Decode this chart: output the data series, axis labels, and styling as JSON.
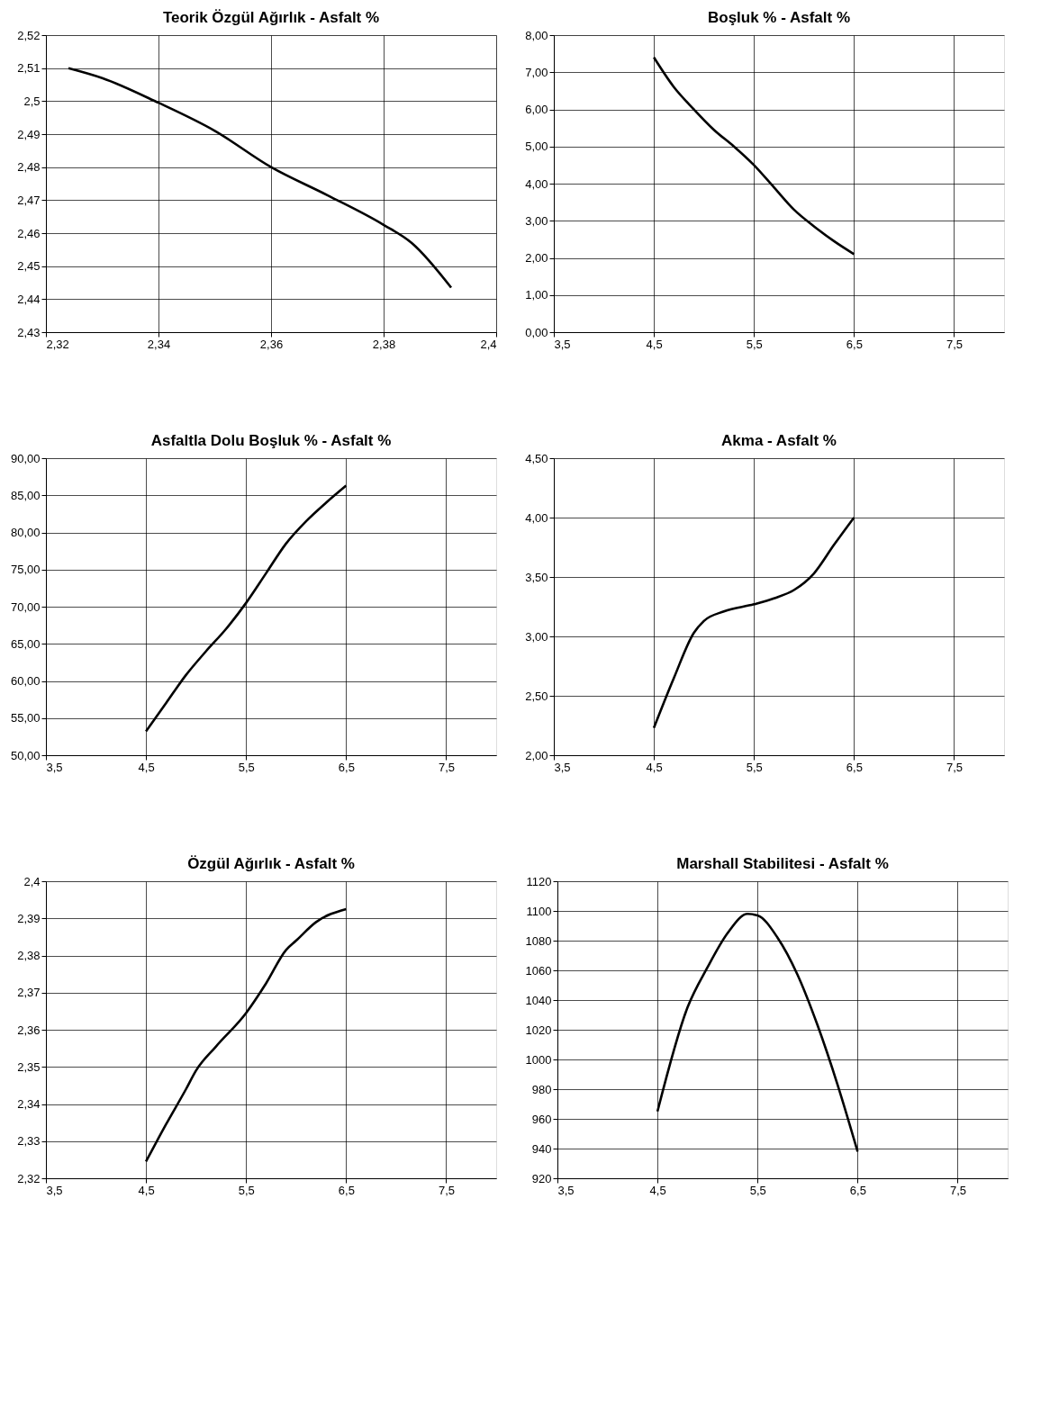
{
  "chart_data": [
    {
      "type": "line",
      "title": "Teorik Özgül Ağırlık - Asfalt %",
      "x": [
        2.324,
        2.33,
        2.34,
        2.35,
        2.36,
        2.37,
        2.38,
        2.385,
        2.392
      ],
      "series": [
        {
          "color": "#000000",
          "values": [
            2.51,
            2.507,
            2.4995,
            2.491,
            2.48,
            2.4715,
            2.4625,
            2.457,
            2.4435
          ]
        }
      ],
      "xlim": [
        2.32,
        2.4
      ],
      "xticks": [
        {
          "value": 2.32,
          "label": "2,32"
        },
        {
          "value": 2.34,
          "label": "2,34"
        },
        {
          "value": 2.36,
          "label": "2,36"
        },
        {
          "value": 2.38,
          "label": "2,38"
        },
        {
          "value": 2.4,
          "label": "2,4"
        }
      ],
      "ylim": [
        2.43,
        2.52
      ],
      "yticks": [
        {
          "value": 2.43,
          "label": "2,43"
        },
        {
          "value": 2.44,
          "label": "2,44"
        },
        {
          "value": 2.45,
          "label": "2,45"
        },
        {
          "value": 2.46,
          "label": "2,46"
        },
        {
          "value": 2.47,
          "label": "2,47"
        },
        {
          "value": 2.48,
          "label": "2,48"
        },
        {
          "value": 2.49,
          "label": "2,49"
        },
        {
          "value": 2.5,
          "label": "2,5"
        },
        {
          "value": 2.51,
          "label": "2,51"
        },
        {
          "value": 2.52,
          "label": "2,52"
        }
      ],
      "grid": true
    },
    {
      "type": "line",
      "title": "Boşluk % - Asfalt %",
      "x": [
        4.5,
        4.7,
        4.9,
        5.1,
        5.3,
        5.5,
        5.7,
        5.9,
        6.1,
        6.3,
        6.5
      ],
      "series": [
        {
          "color": "#000000",
          "values": [
            7.4,
            6.6,
            6.0,
            5.45,
            5.0,
            4.5,
            3.9,
            3.3,
            2.85,
            2.45,
            2.1
          ]
        }
      ],
      "xlim": [
        3.5,
        8.0
      ],
      "xticks": [
        {
          "value": 3.5,
          "label": "3,5"
        },
        {
          "value": 4.5,
          "label": "4,5"
        },
        {
          "value": 5.5,
          "label": "5,5"
        },
        {
          "value": 6.5,
          "label": "6,5"
        },
        {
          "value": 7.5,
          "label": "7,5"
        }
      ],
      "ylim": [
        0,
        8
      ],
      "yticks": [
        {
          "value": 0,
          "label": "0,00"
        },
        {
          "value": 1,
          "label": "1,00"
        },
        {
          "value": 2,
          "label": "2,00"
        },
        {
          "value": 3,
          "label": "3,00"
        },
        {
          "value": 4,
          "label": "4,00"
        },
        {
          "value": 5,
          "label": "5,00"
        },
        {
          "value": 6,
          "label": "6,00"
        },
        {
          "value": 7,
          "label": "7,00"
        },
        {
          "value": 8,
          "label": "8,00"
        }
      ],
      "grid": true
    },
    {
      "type": "line",
      "title": "Asfaltla Dolu Boşluk % - Asfalt %",
      "x": [
        4.5,
        4.7,
        4.9,
        5.1,
        5.3,
        5.5,
        5.7,
        5.9,
        6.1,
        6.3,
        6.5
      ],
      "series": [
        {
          "color": "#000000",
          "values": [
            53.2,
            57,
            60.8,
            64,
            67,
            70.5,
            74.5,
            78.5,
            81.5,
            84,
            86.3
          ]
        }
      ],
      "xlim": [
        3.5,
        8.0
      ],
      "xticks": [
        {
          "value": 3.5,
          "label": "3,5"
        },
        {
          "value": 4.5,
          "label": "4,5"
        },
        {
          "value": 5.5,
          "label": "5,5"
        },
        {
          "value": 6.5,
          "label": "6,5"
        },
        {
          "value": 7.5,
          "label": "7,5"
        }
      ],
      "ylim": [
        50,
        90
      ],
      "yticks": [
        {
          "value": 50,
          "label": "50,00"
        },
        {
          "value": 55,
          "label": "55,00"
        },
        {
          "value": 60,
          "label": "60,00"
        },
        {
          "value": 65,
          "label": "65,00"
        },
        {
          "value": 70,
          "label": "70,00"
        },
        {
          "value": 75,
          "label": "75,00"
        },
        {
          "value": 80,
          "label": "80,00"
        },
        {
          "value": 85,
          "label": "85,00"
        },
        {
          "value": 90,
          "label": "90,00"
        }
      ],
      "grid": true
    },
    {
      "type": "line",
      "title": "Akma - Asfalt %",
      "x": [
        4.5,
        4.7,
        4.9,
        5.0,
        5.2,
        5.5,
        5.7,
        5.9,
        6.1,
        6.3,
        6.5
      ],
      "series": [
        {
          "color": "#000000",
          "values": [
            2.23,
            2.65,
            3.03,
            3.13,
            3.21,
            3.27,
            3.32,
            3.39,
            3.53,
            3.77,
            4.0
          ]
        }
      ],
      "xlim": [
        3.5,
        8.0
      ],
      "xticks": [
        {
          "value": 3.5,
          "label": "3,5"
        },
        {
          "value": 4.5,
          "label": "4,5"
        },
        {
          "value": 5.5,
          "label": "5,5"
        },
        {
          "value": 6.5,
          "label": "6,5"
        },
        {
          "value": 7.5,
          "label": "7,5"
        }
      ],
      "ylim": [
        2,
        4.5
      ],
      "yticks": [
        {
          "value": 2,
          "label": "2,00"
        },
        {
          "value": 2.5,
          "label": "2,50"
        },
        {
          "value": 3,
          "label": "3,00"
        },
        {
          "value": 3.5,
          "label": "3,50"
        },
        {
          "value": 4,
          "label": "4,00"
        },
        {
          "value": 4.5,
          "label": "4,50"
        }
      ],
      "grid": true
    },
    {
      "type": "line",
      "title": "Özgül Ağırlık - Asfalt %",
      "x": [
        4.5,
        4.7,
        4.9,
        5.0,
        5.2,
        5.5,
        5.7,
        5.9,
        6.0,
        6.2,
        6.5
      ],
      "series": [
        {
          "color": "#000000",
          "values": [
            2.3245,
            2.3345,
            2.344,
            2.349,
            2.3555,
            2.3645,
            2.3725,
            2.3815,
            2.384,
            2.389,
            2.3925
          ]
        }
      ],
      "xlim": [
        3.5,
        8.0
      ],
      "xticks": [
        {
          "value": 3.5,
          "label": "3,5"
        },
        {
          "value": 4.5,
          "label": "4,5"
        },
        {
          "value": 5.5,
          "label": "5,5"
        },
        {
          "value": 6.5,
          "label": "6,5"
        },
        {
          "value": 7.5,
          "label": "7,5"
        }
      ],
      "ylim": [
        2.32,
        2.4
      ],
      "yticks": [
        {
          "value": 2.32,
          "label": "2,32"
        },
        {
          "value": 2.33,
          "label": "2,33"
        },
        {
          "value": 2.34,
          "label": "2,34"
        },
        {
          "value": 2.35,
          "label": "2,35"
        },
        {
          "value": 2.36,
          "label": "2,36"
        },
        {
          "value": 2.37,
          "label": "2,37"
        },
        {
          "value": 2.38,
          "label": "2,38"
        },
        {
          "value": 2.39,
          "label": "2,39"
        },
        {
          "value": 2.4,
          "label": "2,4"
        }
      ],
      "grid": true
    },
    {
      "type": "line",
      "title": "Marshall Stabilitesi - Asfalt %",
      "x": [
        4.5,
        4.8,
        5.0,
        5.2,
        5.4,
        5.5,
        5.7,
        5.9,
        6.1,
        6.3,
        6.5
      ],
      "series": [
        {
          "color": "#000000",
          "values": [
            965,
            1035,
            1062,
            1085,
            1098,
            1097,
            1082,
            1057,
            1023,
            983,
            938
          ]
        }
      ],
      "xlim": [
        3.5,
        8.0
      ],
      "xticks": [
        {
          "value": 3.5,
          "label": "3,5"
        },
        {
          "value": 4.5,
          "label": "4,5"
        },
        {
          "value": 5.5,
          "label": "5,5"
        },
        {
          "value": 6.5,
          "label": "6,5"
        },
        {
          "value": 7.5,
          "label": "7,5"
        }
      ],
      "ylim": [
        920,
        1120
      ],
      "yticks": [
        920,
        940,
        960,
        980,
        1000,
        1020,
        1040,
        1060,
        1080,
        1100,
        1120
      ],
      "grid": true
    }
  ]
}
